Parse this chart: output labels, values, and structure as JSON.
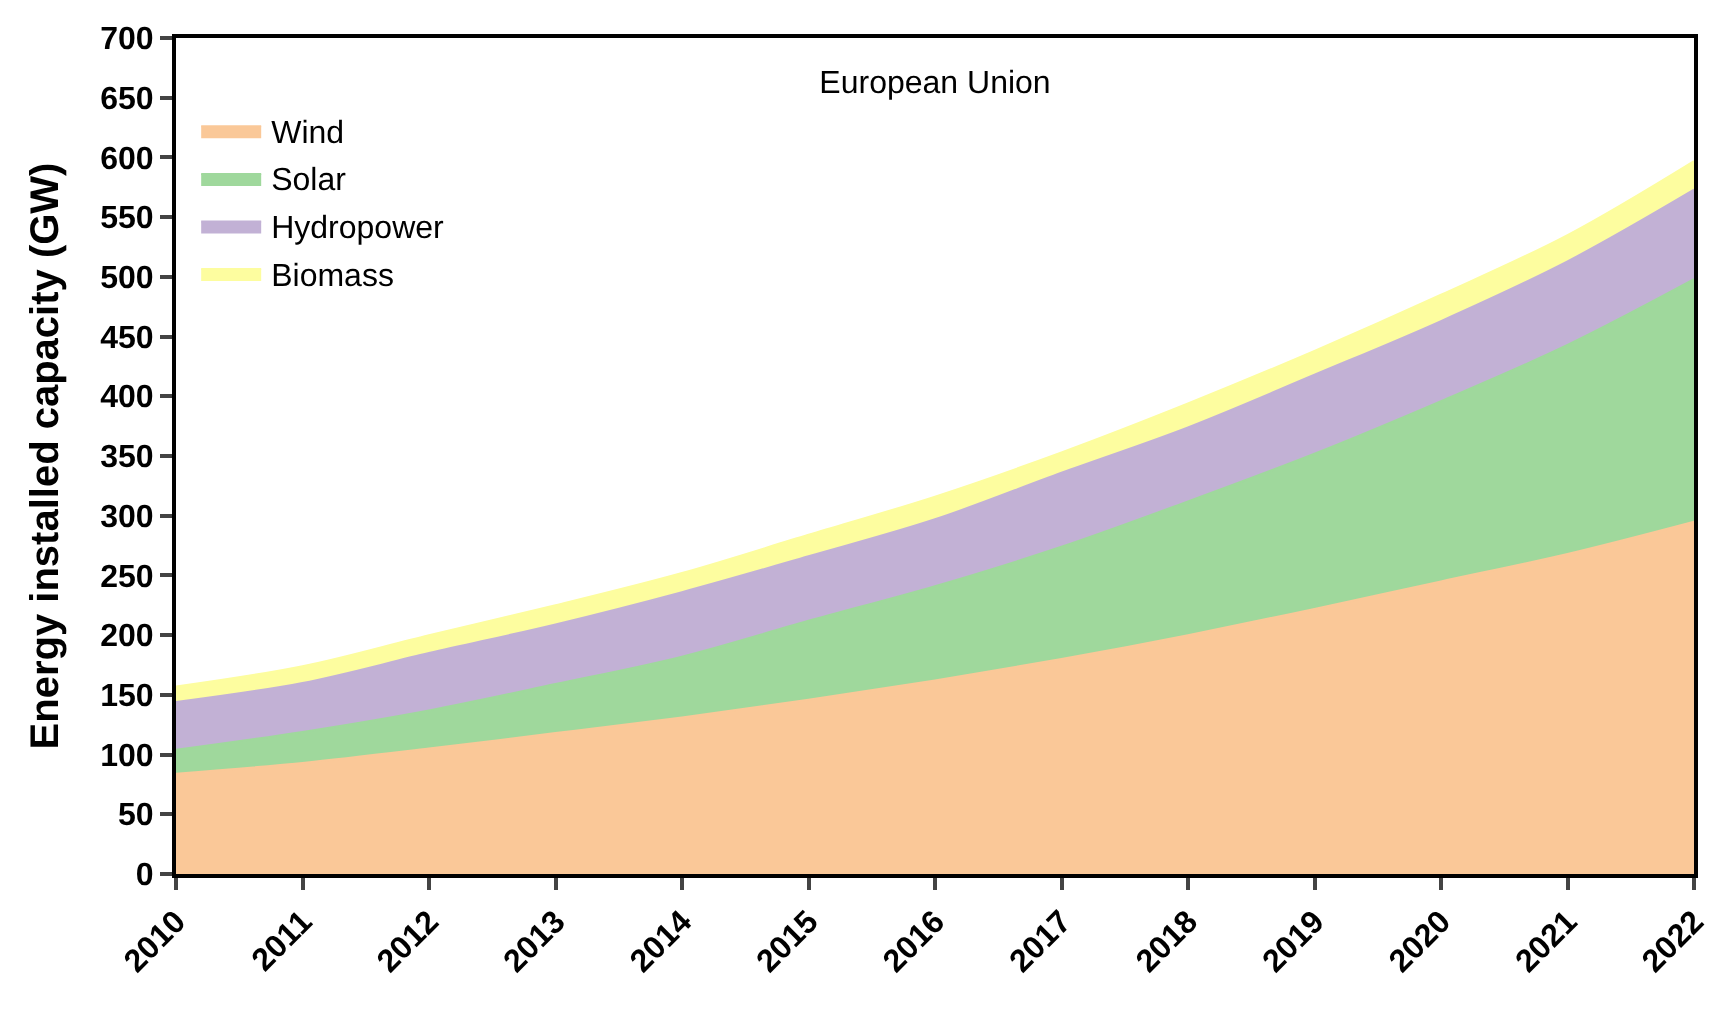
{
  "chart_data": {
    "type": "area",
    "stacked": true,
    "title": "European Union",
    "ylabel": "Energy installed capacity (GW)",
    "x": [
      2010,
      2011,
      2012,
      2013,
      2014,
      2015,
      2016,
      2017,
      2018,
      2019,
      2020,
      2021,
      2022
    ],
    "xlim": [
      2010,
      2022
    ],
    "xticks": [
      2010,
      2011,
      2012,
      2013,
      2014,
      2015,
      2016,
      2017,
      2018,
      2019,
      2020,
      2021,
      2022
    ],
    "ylim": [
      0,
      700
    ],
    "yticks": [
      0,
      50,
      100,
      150,
      200,
      250,
      300,
      350,
      400,
      450,
      500,
      550,
      600,
      650,
      700
    ],
    "legend": "top left",
    "series": [
      {
        "name": "Wind",
        "color": "#fac898",
        "values": [
          84,
          93,
          105,
          118,
          131,
          146,
          162,
          180,
          200,
          222,
          245,
          268,
          295
        ]
      },
      {
        "name": "Solar",
        "color": "#9fd89c",
        "values": [
          20,
          26,
          32,
          41,
          51,
          66,
          79,
          94,
          112,
          130,
          151,
          175,
          203
        ]
      },
      {
        "name": "Hydropower",
        "color": "#c2b1d5",
        "values": [
          40,
          41,
          48,
          50,
          54,
          54,
          56,
          62,
          62,
          66,
          67,
          70,
          75
        ]
      },
      {
        "name": "Biomass",
        "color": "#fdfd9f",
        "values": [
          13,
          14,
          15,
          16,
          16,
          18,
          19,
          17,
          20,
          20,
          22,
          22,
          24
        ]
      }
    ]
  }
}
